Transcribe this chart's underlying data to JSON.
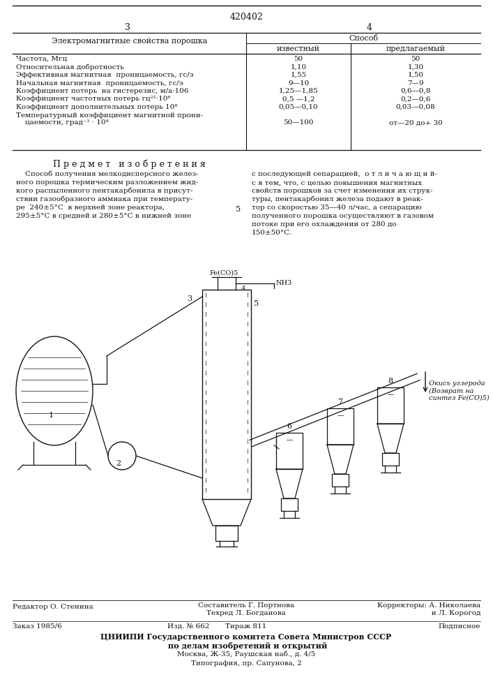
{
  "patent_number": "420402",
  "page_left": "3",
  "page_right": "4",
  "table_header_col1": "Электромагнитные свойства порошка",
  "table_header_sposob": "Способ",
  "table_col2": "известный",
  "table_col3": "предлагаемый",
  "table_rows": [
    {
      "label": "Частота, Мгц",
      "known": "50",
      "proposed": "50"
    },
    {
      "label": "Относительная добротность",
      "known": "1,10",
      "proposed": "1,30"
    },
    {
      "label": "Эффективная магнитная  проницаемость, гс/э",
      "known": "1,55",
      "proposed": "1,50"
    },
    {
      "label": "Начальная магнитная  проницаемость, гс/э",
      "known": "9—10",
      "proposed": "7—9"
    },
    {
      "label": "Коэффициент потерь  на гистерезис, м/а·106",
      "known": "1,25—1,85",
      "proposed": "0,6—0,8"
    },
    {
      "label": "Коэффициент частотных потерь гц²¹·10⁸",
      "known": "0,5 —1,2",
      "proposed": "0,2—0,6"
    },
    {
      "label": "Коэффициент дополнительных потерь 10⁸",
      "known": "0,05—0,10",
      "proposed": "0,03—0,08"
    },
    {
      "label": "Температурный коэффициент магнитной прони-\n    цаемости, град⁻¹ · 10⁴",
      "known": "50—100",
      "proposed": "от—20 до+ 30"
    }
  ],
  "section_title": "П р е д м е т   и з о б р е т е н и я",
  "left_text_lines": [
    "    Способ получения мелкодисперсного желез-",
    "ного порошка термическим разложением жид-",
    "кого распыленного пентакарбонила в присут-",
    "ствии газообразного аммиака при температу-",
    "ре  240±5°С  в верхней зоне реактора,",
    "295±5°С в средней и 280±5°С в нижней зоне"
  ],
  "right_text_lines": [
    "с последующей сепарацией,  о т л и ч а ю щ и й-",
    "с я тем, что, с целью повышения магнитных",
    "свойств порошков за счет изменения их струк-",
    "туры, пентакарбонил железа подают в реак-",
    "тор со скоростью 35—40 л/час, а сепарацию",
    "полученного порошка осуществляют в газовом",
    "потоке при его охлаждении от 280 до",
    "150±50°С."
  ],
  "col_number": "5",
  "diagram_label_feco5": "Fe(CO)5",
  "diagram_label_nh3": "NH3",
  "diagram_label_co": "Окись углерода\n(Возврат на\nсинтез Fe(CO)5)",
  "footer_editor": "Редактор О. Стенина",
  "footer_sostavitel": "Составитель Г. Портнова",
  "footer_tehred": "Техред Л. Богданова",
  "footer_korr1": "Корректоры: А. Николаева",
  "footer_korr2": "               и Л. Корогод",
  "footer_zakaz": "Заказ 1985/6",
  "footer_izd": "Изд. № 662",
  "footer_tirazh": "Тираж 811",
  "footer_podp": "Подписное",
  "footer_org1": "ЦНИИПИ Государственного комитета Совета Министров СССР",
  "footer_org2": " по делам изобретений и открытий",
  "footer_addr": "Москва, Ж-35, Раушская наб., д. 4/5",
  "footer_tip": "Типография, пр. Сапунова, 2",
  "bg_color": "#ffffff",
  "text_color": "#1a1a1a"
}
